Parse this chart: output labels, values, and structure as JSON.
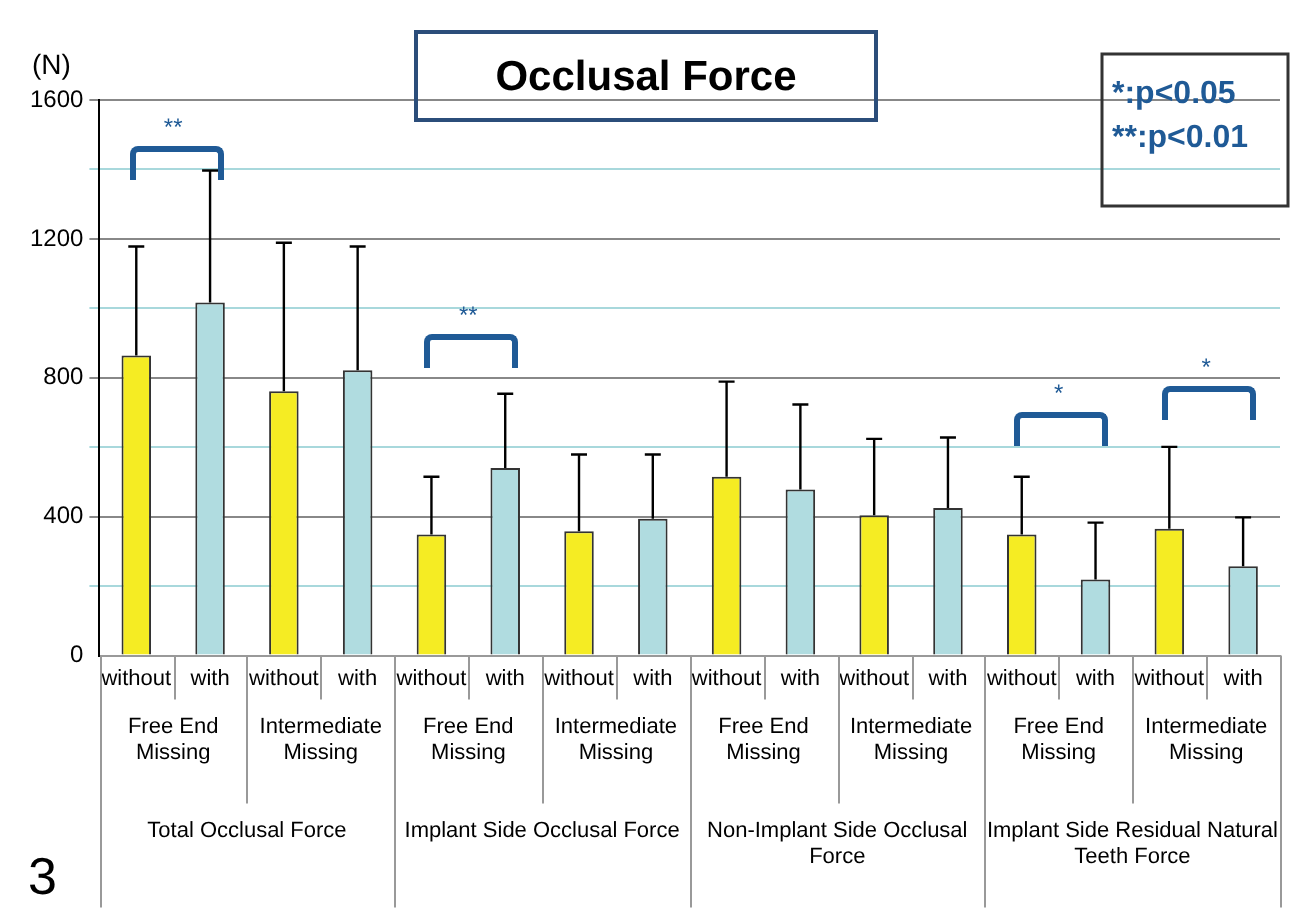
{
  "chart_data": {
    "type": "bar",
    "title": "Occlusal Force",
    "ylabel": "(N)",
    "categories": [
      "without",
      "with",
      "without",
      "with",
      "without",
      "with",
      "without",
      "with",
      "without",
      "with",
      "without",
      "with",
      "without",
      "with",
      "without",
      "with"
    ],
    "values": [
      864,
      1017,
      761,
      822,
      349,
      540,
      358,
      394,
      515,
      478,
      404,
      425,
      349,
      219,
      365,
      257
    ],
    "colors": [
      "#f5ec23",
      "#b0dce0",
      "#f5ec23",
      "#b0dce0",
      "#f5ec23",
      "#b0dce0",
      "#f5ec23",
      "#b0dce0",
      "#f5ec23",
      "#b0dce0",
      "#f5ec23",
      "#b0dce0",
      "#f5ec23",
      "#b0dce0",
      "#f5ec23",
      "#b0dce0"
    ],
    "errors": [
      [
        864,
        1178
      ],
      [
        1017,
        1397
      ],
      [
        761,
        1189
      ],
      [
        822,
        1178
      ],
      [
        349,
        515
      ],
      [
        540,
        754
      ],
      [
        358,
        579
      ],
      [
        394,
        579
      ],
      [
        515,
        789
      ],
      [
        478,
        723
      ],
      [
        404,
        624
      ],
      [
        425,
        628
      ],
      [
        349,
        515
      ],
      [
        219,
        383
      ],
      [
        365,
        601
      ],
      [
        257,
        398
      ]
    ],
    "ylim": [
      0,
      1600
    ],
    "yticks": [
      0,
      {
        "value": 200,
        "label": null
      },
      400,
      {
        "value": 600,
        "label": null
      },
      800,
      {
        "value": 1000,
        "label": null
      },
      1200,
      {
        "value": 1400,
        "label": null
      },
      1600
    ],
    "grid": "y",
    "legend": false,
    "annotations": [
      "Free End\nMissing",
      "Intermediate\nMissing",
      "Free End\nMissing",
      "Intermediate\nMissing",
      "Free End\nMissing",
      "Intermediate\nMissing",
      "Free End\nMissing",
      "Intermediate\nMissing",
      "Total Occlusal Force",
      "Implant Side Occlusal Force",
      "Non-Implant Side Occlusal\nForce",
      "Implant Side Residual Natural\nTeeth Force",
      "*:p<0.05",
      "**:p<0.01",
      "**",
      "**",
      "*",
      "*",
      "3"
    ]
  }
}
